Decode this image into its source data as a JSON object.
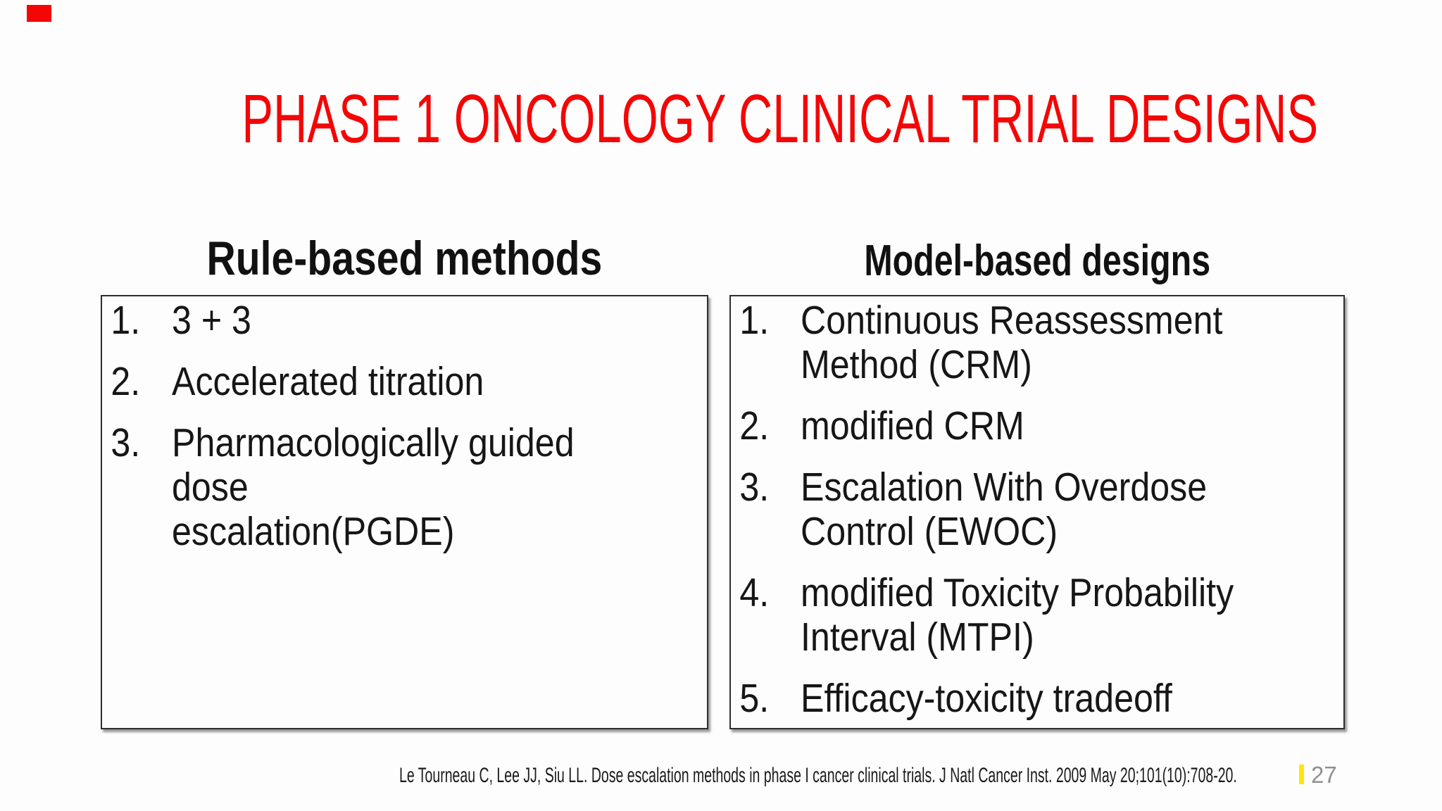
{
  "slide": {
    "title": {
      "text": "PHASE 1 ONCOLOGY CLINICAL TRIAL DESIGNS",
      "color": "#f40606"
    },
    "marker_color": "#f40606",
    "columns": [
      {
        "heading": "Rule-based methods",
        "items": [
          {
            "num": "1.",
            "text": "3 + 3"
          },
          {
            "num": "2.",
            "text": "Accelerated titration"
          },
          {
            "num": "3.",
            "text": "Pharmacologically guided dose\nescalation(PGDE)"
          }
        ]
      },
      {
        "heading": "Model-based designs",
        "items": [
          {
            "num": "1.",
            "text": "Continuous Reassessment\nMethod (CRM)"
          },
          {
            "num": "2.",
            "text": "modified CRM"
          },
          {
            "num": "3.",
            "text": "Escalation With Overdose\nControl (EWOC)"
          },
          {
            "num": "4.",
            "text": "modified Toxicity Probability\nInterval (MTPI)"
          },
          {
            "num": "5.",
            "text": "Efficacy-toxicity tradeoff"
          }
        ]
      }
    ],
    "footer": {
      "citation": "Le Tourneau C, Lee JJ, Siu LL. Dose escalation methods in phase I cancer clinical trials. J Natl Cancer Inst. 2009 May 20;101(10):708-20.",
      "highlight_color": "#ffe60a",
      "page_number": "27",
      "page_number_color": "#8f8f8f"
    }
  }
}
